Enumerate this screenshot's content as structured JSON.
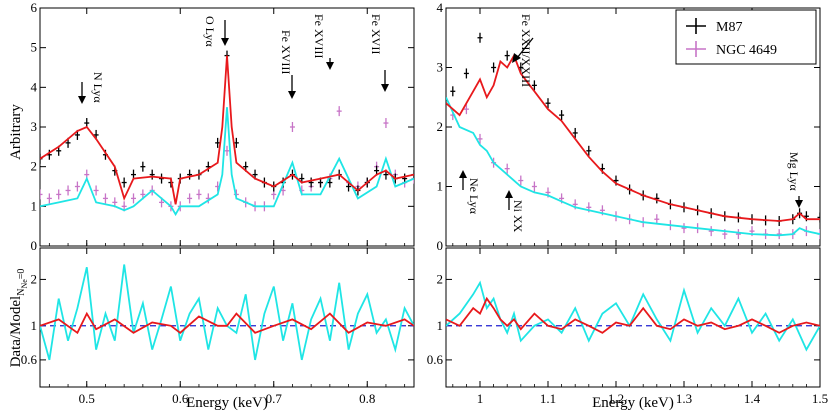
{
  "labels": {
    "y_top": "Arbitrary",
    "y_bottom": "Data/Model",
    "y_bottom_sub": "N",
    "y_bottom_sub2": "Ne",
    "y_bottom_sub3": "=0",
    "x_left": "Energy (keV)",
    "x_right": "Energy (keV)"
  },
  "legend": {
    "m87": "M87",
    "ngc": "NGC 4649"
  },
  "annotations": {
    "n_lya": "N Lyα",
    "o_lya": "O Lyα",
    "fe18_a": "Fe XVIII",
    "fe18_b": "Fe XVIII",
    "fe18_c": "Fe XVII",
    "fe22": "Fe XXII/XXIII",
    "ne_lya": "Ne Lyα",
    "ni": "Ni XX",
    "mg_lya": "Mg Lyα"
  },
  "colors": {
    "m87": "#000000",
    "ngc": "#c774c7",
    "model_m87": "#e8191c",
    "model_ngc": "#1fe5e5",
    "unity": "#2020d0"
  },
  "chart_data": {
    "type": "line",
    "left": {
      "xlim": [
        0.45,
        0.85
      ],
      "x_ticks": [
        0.5,
        0.6,
        0.7,
        0.8
      ],
      "top_ylim": [
        0,
        6
      ],
      "top_y_ticks": [
        0,
        1,
        2,
        3,
        4,
        5,
        6
      ],
      "ratio_ylim": [
        0.4,
        3.2
      ],
      "ratio_y_ticks": [
        0.6,
        1,
        2
      ],
      "series": [
        {
          "name": "M87",
          "x": [
            0.45,
            0.46,
            0.47,
            0.48,
            0.49,
            0.5,
            0.51,
            0.52,
            0.53,
            0.54,
            0.55,
            0.56,
            0.57,
            0.58,
            0.59,
            0.6,
            0.61,
            0.62,
            0.63,
            0.64,
            0.65,
            0.66,
            0.67,
            0.68,
            0.69,
            0.7,
            0.71,
            0.72,
            0.73,
            0.74,
            0.75,
            0.76,
            0.77,
            0.78,
            0.79,
            0.8,
            0.81,
            0.82,
            0.83,
            0.84,
            0.85
          ],
          "y": [
            2.2,
            2.3,
            2.4,
            2.6,
            2.8,
            3.1,
            2.8,
            2.3,
            1.9,
            1.6,
            1.8,
            2.0,
            1.8,
            1.7,
            1.6,
            1.7,
            1.8,
            1.8,
            2.0,
            2.6,
            4.8,
            2.6,
            2.0,
            1.8,
            1.6,
            1.5,
            1.6,
            1.8,
            1.7,
            1.6,
            1.6,
            1.6,
            1.8,
            1.5,
            1.4,
            1.6,
            1.9,
            1.8,
            1.7,
            1.7,
            1.8
          ]
        },
        {
          "name": "NGC 4649",
          "x": [
            0.45,
            0.46,
            0.47,
            0.48,
            0.49,
            0.5,
            0.51,
            0.52,
            0.53,
            0.54,
            0.55,
            0.56,
            0.57,
            0.58,
            0.59,
            0.6,
            0.61,
            0.62,
            0.63,
            0.64,
            0.65,
            0.66,
            0.67,
            0.68,
            0.69,
            0.7,
            0.71,
            0.72,
            0.73,
            0.74,
            0.75,
            0.76,
            0.77,
            0.78,
            0.79,
            0.8,
            0.81,
            0.82,
            0.83,
            0.84,
            0.85
          ],
          "y": [
            1.3,
            1.2,
            1.3,
            1.4,
            1.5,
            1.8,
            1.4,
            1.2,
            1.1,
            1.0,
            1.2,
            1.3,
            1.4,
            1.1,
            1.0,
            1.0,
            1.2,
            1.3,
            1.2,
            1.5,
            2.4,
            1.3,
            1.1,
            1.0,
            1.0,
            1.3,
            1.4,
            3.0,
            1.4,
            1.5,
            1.6,
            1.7,
            3.4,
            1.6,
            1.5,
            1.6,
            2.0,
            3.1,
            1.8,
            1.6,
            1.7
          ]
        },
        {
          "name": "M87 model",
          "x": [
            0.45,
            0.47,
            0.49,
            0.5,
            0.51,
            0.53,
            0.54,
            0.55,
            0.57,
            0.59,
            0.595,
            0.6,
            0.62,
            0.64,
            0.645,
            0.65,
            0.655,
            0.66,
            0.68,
            0.7,
            0.72,
            0.73,
            0.75,
            0.77,
            0.79,
            0.81,
            0.82,
            0.83,
            0.85
          ],
          "y": [
            2.2,
            2.5,
            2.9,
            3.0,
            2.7,
            2.0,
            1.2,
            1.7,
            1.75,
            1.7,
            1.05,
            1.7,
            1.8,
            2.1,
            3.0,
            4.8,
            3.0,
            2.1,
            1.7,
            1.5,
            1.8,
            1.6,
            1.7,
            1.8,
            1.4,
            1.8,
            1.9,
            1.7,
            1.8
          ]
        },
        {
          "name": "NGC 4649 model",
          "x": [
            0.45,
            0.47,
            0.49,
            0.5,
            0.51,
            0.53,
            0.54,
            0.55,
            0.57,
            0.59,
            0.595,
            0.6,
            0.62,
            0.64,
            0.645,
            0.65,
            0.655,
            0.66,
            0.68,
            0.7,
            0.72,
            0.73,
            0.75,
            0.77,
            0.79,
            0.81,
            0.82,
            0.83,
            0.85
          ],
          "y": [
            1.0,
            1.1,
            1.2,
            1.7,
            1.1,
            1.0,
            0.9,
            1.0,
            1.4,
            1.0,
            0.8,
            1.0,
            1.0,
            1.3,
            1.8,
            3.5,
            1.8,
            1.2,
            1.0,
            1.0,
            2.1,
            1.3,
            1.3,
            2.2,
            1.2,
            1.5,
            2.2,
            1.5,
            1.7
          ]
        },
        {
          "name": "M87 ratio",
          "x": [
            0.45,
            0.47,
            0.49,
            0.5,
            0.51,
            0.53,
            0.55,
            0.57,
            0.59,
            0.6,
            0.62,
            0.64,
            0.65,
            0.66,
            0.68,
            0.7,
            0.72,
            0.74,
            0.76,
            0.78,
            0.8,
            0.82,
            0.84,
            0.85
          ],
          "y": [
            1.0,
            1.1,
            0.9,
            1.2,
            0.95,
            1.1,
            0.9,
            1.05,
            1.0,
            0.9,
            1.15,
            1.0,
            1.0,
            1.2,
            0.9,
            1.0,
            1.1,
            0.95,
            1.2,
            0.9,
            1.05,
            1.0,
            1.1,
            1.0
          ]
        },
        {
          "name": "NGC 4649 ratio",
          "x": [
            0.45,
            0.46,
            0.47,
            0.48,
            0.49,
            0.5,
            0.51,
            0.52,
            0.53,
            0.54,
            0.55,
            0.56,
            0.57,
            0.58,
            0.59,
            0.6,
            0.61,
            0.62,
            0.63,
            0.64,
            0.65,
            0.66,
            0.67,
            0.68,
            0.69,
            0.7,
            0.71,
            0.72,
            0.73,
            0.74,
            0.75,
            0.76,
            0.77,
            0.78,
            0.79,
            0.8,
            0.81,
            0.82,
            0.83,
            0.84,
            0.85
          ],
          "y": [
            1.0,
            0.6,
            1.5,
            0.8,
            1.3,
            2.4,
            0.7,
            1.2,
            0.8,
            2.5,
            0.9,
            1.4,
            0.7,
            1.1,
            1.8,
            0.8,
            1.2,
            1.5,
            0.7,
            1.3,
            1.0,
            0.9,
            1.6,
            0.6,
            1.2,
            1.8,
            0.8,
            1.4,
            0.6,
            1.1,
            1.5,
            0.8,
            1.9,
            0.7,
            1.2,
            1.6,
            0.9,
            1.1,
            0.7,
            1.3,
            1.0
          ]
        }
      ]
    },
    "right": {
      "xlim": [
        0.95,
        1.5
      ],
      "x_ticks": [
        1.0,
        1.1,
        1.2,
        1.3,
        1.4,
        1.5
      ],
      "top_ylim": [
        0,
        4
      ],
      "top_y_ticks": [
        0,
        1,
        2,
        3,
        4
      ],
      "ratio_ylim": [
        0.4,
        3.2
      ],
      "ratio_y_ticks": [
        0.6,
        1,
        2
      ],
      "series": [
        {
          "name": "M87",
          "x": [
            0.96,
            0.98,
            1.0,
            1.02,
            1.04,
            1.06,
            1.08,
            1.1,
            1.12,
            1.14,
            1.16,
            1.18,
            1.2,
            1.22,
            1.24,
            1.26,
            1.28,
            1.3,
            1.32,
            1.34,
            1.36,
            1.38,
            1.4,
            1.42,
            1.44,
            1.46,
            1.47,
            1.48,
            1.5
          ],
          "y": [
            2.6,
            2.9,
            3.5,
            3.0,
            3.2,
            3.0,
            2.7,
            2.4,
            2.2,
            1.9,
            1.6,
            1.3,
            1.1,
            0.95,
            0.85,
            0.8,
            0.7,
            0.65,
            0.6,
            0.55,
            0.5,
            0.48,
            0.45,
            0.43,
            0.42,
            0.45,
            0.55,
            0.5,
            0.48
          ]
        },
        {
          "name": "NGC 4649",
          "x": [
            0.96,
            0.98,
            1.0,
            1.02,
            1.04,
            1.06,
            1.08,
            1.1,
            1.12,
            1.14,
            1.16,
            1.18,
            1.2,
            1.22,
            1.24,
            1.26,
            1.28,
            1.3,
            1.32,
            1.34,
            1.36,
            1.38,
            1.4,
            1.42,
            1.44,
            1.46,
            1.48,
            1.5
          ],
          "y": [
            2.2,
            2.3,
            1.8,
            1.4,
            1.3,
            1.1,
            1.0,
            0.9,
            0.8,
            0.7,
            0.65,
            0.6,
            0.5,
            0.45,
            0.4,
            0.45,
            0.35,
            0.3,
            0.3,
            0.25,
            0.2,
            0.2,
            0.25,
            0.2,
            0.2,
            0.2,
            0.25,
            0.2
          ]
        },
        {
          "name": "M87 model",
          "x": [
            0.95,
            0.97,
            0.99,
            1.0,
            1.01,
            1.02,
            1.03,
            1.04,
            1.05,
            1.06,
            1.08,
            1.1,
            1.12,
            1.14,
            1.16,
            1.18,
            1.2,
            1.24,
            1.28,
            1.32,
            1.36,
            1.4,
            1.44,
            1.46,
            1.47,
            1.48,
            1.5
          ],
          "y": [
            2.4,
            2.2,
            2.6,
            2.8,
            2.5,
            2.7,
            3.1,
            3.0,
            3.2,
            2.9,
            2.6,
            2.3,
            2.1,
            1.8,
            1.5,
            1.25,
            1.05,
            0.85,
            0.7,
            0.6,
            0.5,
            0.45,
            0.42,
            0.45,
            0.55,
            0.45,
            0.45
          ]
        },
        {
          "name": "NGC 4649 model",
          "x": [
            0.95,
            0.97,
            0.99,
            1.0,
            1.01,
            1.02,
            1.03,
            1.04,
            1.05,
            1.06,
            1.08,
            1.1,
            1.12,
            1.14,
            1.16,
            1.18,
            1.2,
            1.24,
            1.28,
            1.32,
            1.36,
            1.4,
            1.44,
            1.46,
            1.47,
            1.48,
            1.5
          ],
          "y": [
            2.5,
            2.0,
            1.9,
            1.7,
            1.6,
            1.4,
            1.3,
            1.2,
            1.1,
            1.0,
            0.9,
            0.85,
            0.75,
            0.65,
            0.6,
            0.55,
            0.5,
            0.4,
            0.35,
            0.3,
            0.25,
            0.2,
            0.18,
            0.2,
            0.3,
            0.25,
            0.2
          ]
        },
        {
          "name": "M87 ratio",
          "x": [
            0.95,
            0.97,
            0.99,
            1.0,
            1.01,
            1.02,
            1.03,
            1.04,
            1.05,
            1.06,
            1.08,
            1.1,
            1.12,
            1.14,
            1.16,
            1.18,
            1.2,
            1.22,
            1.24,
            1.26,
            1.28,
            1.3,
            1.32,
            1.34,
            1.36,
            1.38,
            1.4,
            1.42,
            1.44,
            1.46,
            1.48,
            1.5
          ],
          "y": [
            1.1,
            1.0,
            1.3,
            1.2,
            1.5,
            1.3,
            1.1,
            1.0,
            1.1,
            0.95,
            1.2,
            1.0,
            0.95,
            1.1,
            1.0,
            0.9,
            1.05,
            1.0,
            1.3,
            1.0,
            0.95,
            1.1,
            1.0,
            1.05,
            0.95,
            1.0,
            1.1,
            1.0,
            0.9,
            1.0,
            1.05,
            1.0
          ]
        },
        {
          "name": "NGC 4649 ratio",
          "x": [
            0.95,
            0.97,
            0.99,
            1.0,
            1.01,
            1.02,
            1.03,
            1.04,
            1.05,
            1.06,
            1.08,
            1.1,
            1.12,
            1.14,
            1.16,
            1.18,
            1.2,
            1.22,
            1.24,
            1.26,
            1.28,
            1.3,
            1.32,
            1.34,
            1.36,
            1.38,
            1.4,
            1.42,
            1.44,
            1.46,
            1.48,
            1.5
          ],
          "y": [
            1.0,
            1.2,
            1.6,
            1.9,
            1.3,
            1.5,
            1.1,
            0.9,
            1.2,
            0.8,
            1.0,
            1.1,
            0.9,
            1.3,
            0.8,
            1.2,
            1.4,
            1.0,
            1.6,
            1.1,
            0.8,
            1.7,
            0.9,
            1.3,
            1.0,
            1.5,
            0.9,
            1.2,
            0.8,
            1.1,
            0.7,
            1.0
          ]
        }
      ]
    }
  }
}
